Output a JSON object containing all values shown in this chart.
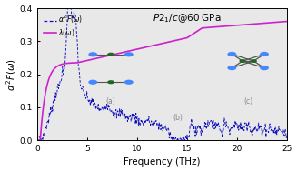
{
  "title": "$P2_1/c$@60 GPa",
  "xlabel": "Frequency (THz)",
  "ylabel": "$\\alpha^2F(\\omega)$",
  "xlim": [
    0,
    25
  ],
  "ylim": [
    0.0,
    0.4
  ],
  "yticks": [
    0.0,
    0.1,
    0.2,
    0.3,
    0.4
  ],
  "xticks": [
    0,
    5,
    10,
    15,
    20,
    25
  ],
  "alpha2F_color": "#1111bb",
  "lambda_color": "#cc22cc",
  "bg_color": "#e8e8e8",
  "atom_blue": "#4488ff",
  "atom_green": "#226622"
}
